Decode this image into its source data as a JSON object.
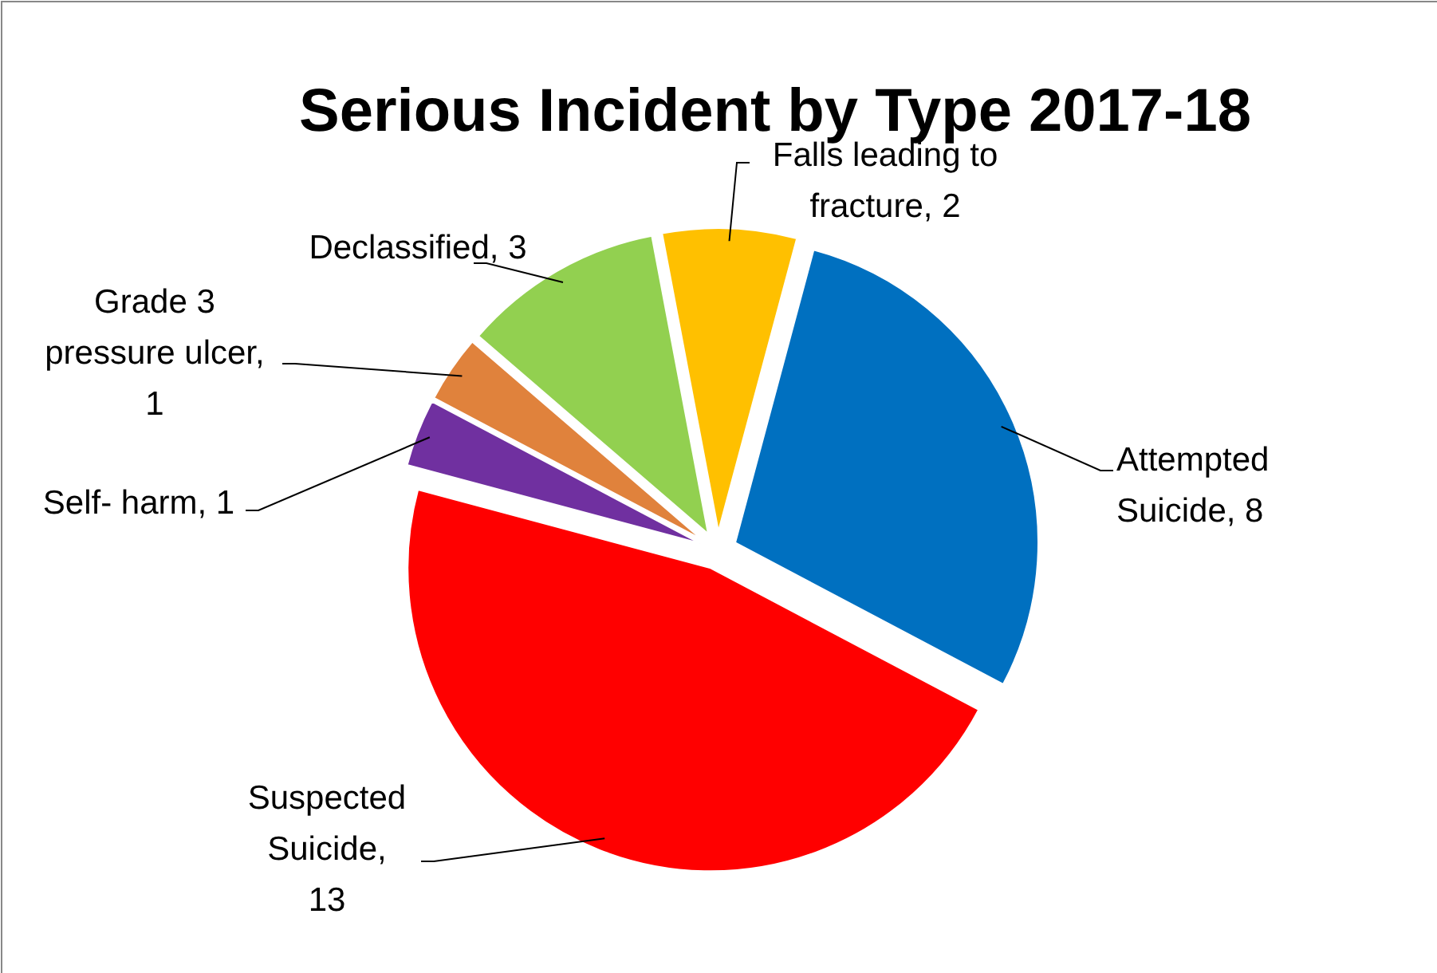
{
  "chart_data": {
    "type": "pie",
    "title": "Serious Incident by Type 2017-18",
    "categories": [
      "Attempted Suicide",
      "Suspected Suicide",
      "Self- harm",
      "Grade 3 pressure ulcer",
      "Declassified",
      "Falls leading to fracture"
    ],
    "values": [
      8,
      13,
      1,
      1,
      3,
      2
    ],
    "colors": [
      "#0070c0",
      "#ff0000",
      "#7030a0",
      "#e0823c",
      "#92d050",
      "#ffc000"
    ],
    "value_labels": [
      ", 8",
      ", 13",
      ", 1",
      ", 1",
      ", 3",
      ", 2"
    ]
  }
}
